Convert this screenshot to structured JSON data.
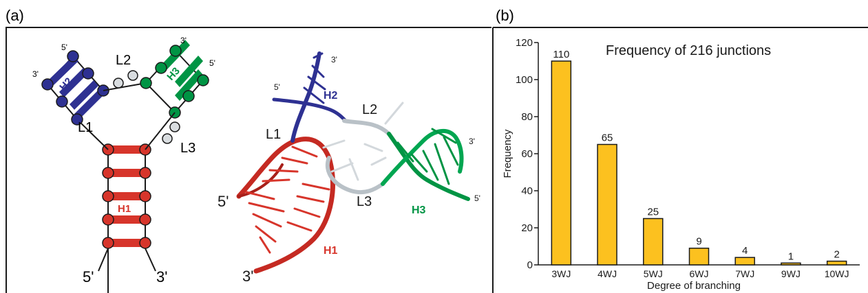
{
  "colors": {
    "panel_border": "#1a1a1a",
    "helix_blue": "#2e3192",
    "helix_green": "#009444",
    "helix_red": "#d7352b",
    "helix_red_dark": "#a8201a",
    "loop_grey": "#d9dde0",
    "bar_fill": "#fcc11f",
    "bar_stroke": "#1a1a1a"
  },
  "panel_a": {
    "label": "(a)",
    "schematic": {
      "h1": "H1",
      "h2": "H2",
      "h3": "H3",
      "l1": "L1",
      "l2": "L2",
      "l3": "L3",
      "h1_5p": "5'",
      "h1_3p": "3'",
      "h2_5p": "5'",
      "h2_3p": "3'",
      "h3_5p": "5'",
      "h3_3p": "3'"
    },
    "structure_3d": {
      "h1": "H1",
      "h2": "H2",
      "h3": "H3",
      "l1": "L1",
      "l2": "L2",
      "l3": "L3",
      "h1_5p": "5'",
      "h1_3p": "3'",
      "h2_5p": "5'",
      "h2_3p": "3'",
      "h3_5p": "5'",
      "h3_3p": "3'"
    }
  },
  "panel_b": {
    "label": "(b)"
  },
  "chart_data": {
    "type": "bar",
    "title": "Frequency of 216 junctions",
    "xlabel": "Degree of branching",
    "ylabel": "Frequency",
    "categories": [
      "3WJ",
      "4WJ",
      "5WJ",
      "6WJ",
      "7WJ",
      "9WJ",
      "10WJ"
    ],
    "values": [
      110,
      65,
      25,
      9,
      4,
      1,
      2
    ],
    "data_labels": [
      "110",
      "65",
      "25",
      "9",
      "4",
      "1",
      "2"
    ],
    "ylim": [
      0,
      120
    ],
    "yticks": [
      0,
      20,
      40,
      60,
      80,
      100,
      120
    ],
    "ytick_labels": [
      "0",
      "20",
      "40",
      "60",
      "80",
      "100",
      "120"
    ],
    "grid": false,
    "bar_color": "#fcc11f"
  }
}
